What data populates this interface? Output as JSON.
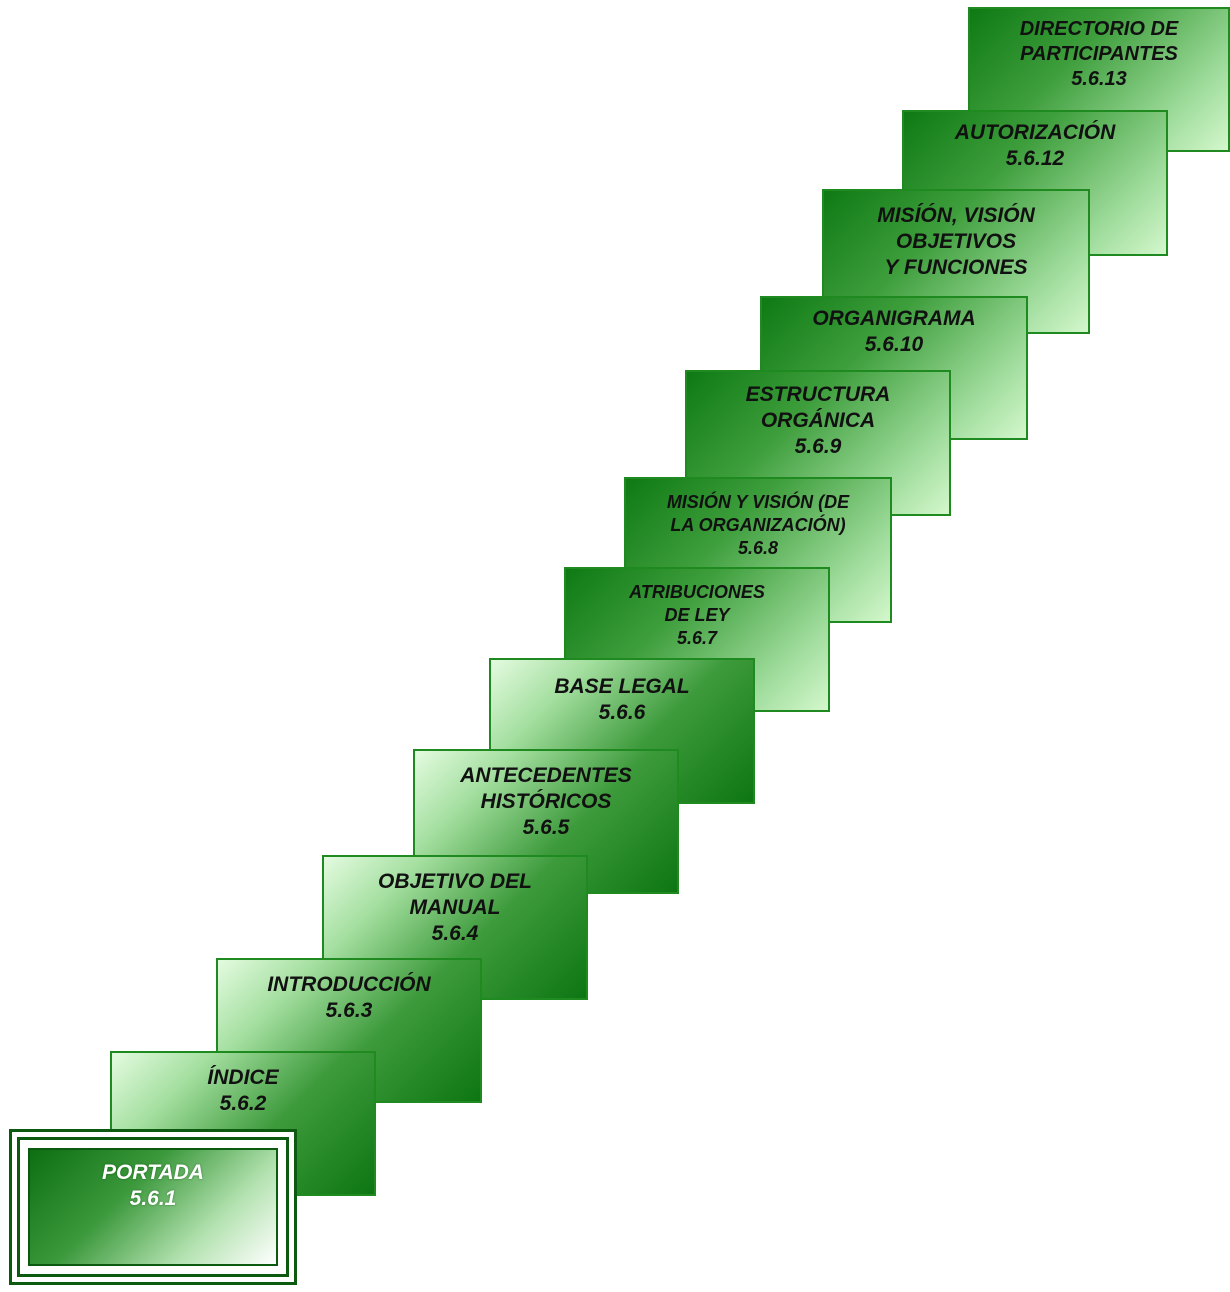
{
  "steps": [
    {
      "id": "5.6.13",
      "lines": [
        "DIRECTORIO DE",
        "PARTICIPANTES"
      ],
      "code": "5.6.13"
    },
    {
      "id": "5.6.12",
      "lines": [
        "AUTORIZACIÓN"
      ],
      "code": "5.6.12"
    },
    {
      "id": "5.6.11",
      "lines": [
        "MISÍÓN, VISIÓN",
        "OBJETIVOS",
        "Y FUNCIONES"
      ],
      "code": ""
    },
    {
      "id": "5.6.10",
      "lines": [
        "ORGANIGRAMA"
      ],
      "code": "5.6.10"
    },
    {
      "id": "5.6.9",
      "lines": [
        "ESTRUCTURA",
        "ORGÁNICA"
      ],
      "code": "5.6.9"
    },
    {
      "id": "5.6.8",
      "lines": [
        "MISIÓN Y VISIÓN (DE",
        "LA ORGANIZACIÓN)"
      ],
      "code": "5.6.8"
    },
    {
      "id": "5.6.7",
      "lines": [
        "ATRIBUCIONES",
        "DE LEY"
      ],
      "code": "5.6.7"
    },
    {
      "id": "5.6.6",
      "lines": [
        "BASE LEGAL"
      ],
      "code": "5.6.6"
    },
    {
      "id": "5.6.5",
      "lines": [
        "ANTECEDENTES",
        "HISTÓRICOS"
      ],
      "code": "5.6.5"
    },
    {
      "id": "5.6.4",
      "lines": [
        "OBJETIVO DEL",
        "MANUAL"
      ],
      "code": "5.6.4"
    },
    {
      "id": "5.6.3",
      "lines": [
        "INTRODUCCIÓN"
      ],
      "code": "5.6.3"
    },
    {
      "id": "5.6.2",
      "lines": [
        "ÍNDICE"
      ],
      "code": "5.6.2"
    }
  ],
  "portada": {
    "line1": "PORTADA",
    "code": "5.6.1"
  },
  "colors": {
    "border": "#1f8a1f",
    "dark_green": "#0e7a14",
    "light_green": "#d4f7cc",
    "frame": "#0c5a10"
  }
}
